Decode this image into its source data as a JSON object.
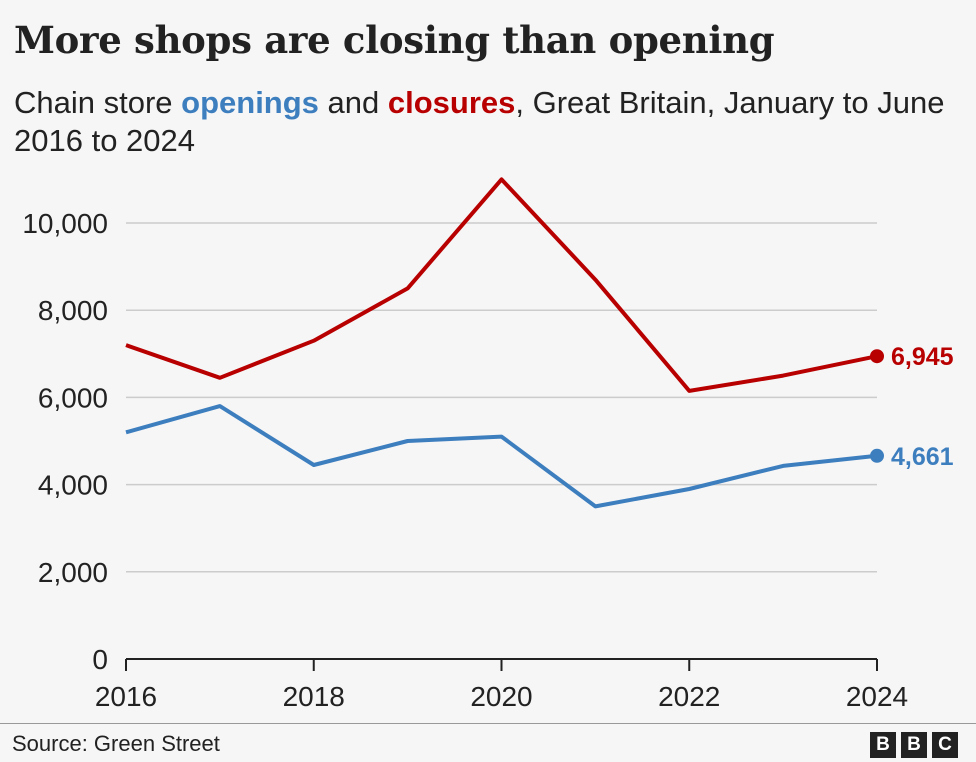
{
  "header": {
    "title": "More shops are closing than opening",
    "subtitle_pre": "Chain store ",
    "subtitle_open": "openings",
    "subtitle_mid": " and ",
    "subtitle_close": "closures",
    "subtitle_post": ", Great Britain, January to June 2016 to 2024"
  },
  "footer": {
    "source": "Source: Green Street",
    "logo": [
      "B",
      "B",
      "C"
    ]
  },
  "colors": {
    "openings": "#3d7ebf",
    "closures": "#b80000",
    "grid": "#cccccc",
    "axis": "#222222"
  },
  "chart_data": {
    "type": "line",
    "x": [
      2016,
      2017,
      2018,
      2019,
      2020,
      2021,
      2022,
      2023,
      2024
    ],
    "series": [
      {
        "name": "closures",
        "values": [
          7200,
          6450,
          7300,
          8500,
          11000,
          8700,
          6150,
          6500,
          6945
        ]
      },
      {
        "name": "openings",
        "values": [
          5200,
          5800,
          4450,
          5000,
          5100,
          3500,
          3900,
          4430,
          4661
        ]
      }
    ],
    "end_labels": {
      "closures": "6,945",
      "openings": "4,661"
    },
    "xticks": [
      2016,
      2018,
      2020,
      2022,
      2024
    ],
    "yticks": [
      0,
      2000,
      4000,
      6000,
      8000,
      10000
    ],
    "ytick_labels": [
      "0",
      "2,000",
      "4,000",
      "6,000",
      "8,000",
      "10,000"
    ],
    "ylim": [
      0,
      11000
    ],
    "xlim": [
      2016,
      2024
    ],
    "grid": true,
    "legend": "none (colored words in subtitle)",
    "title": "More shops are closing than opening",
    "xlabel": "",
    "ylabel": ""
  }
}
